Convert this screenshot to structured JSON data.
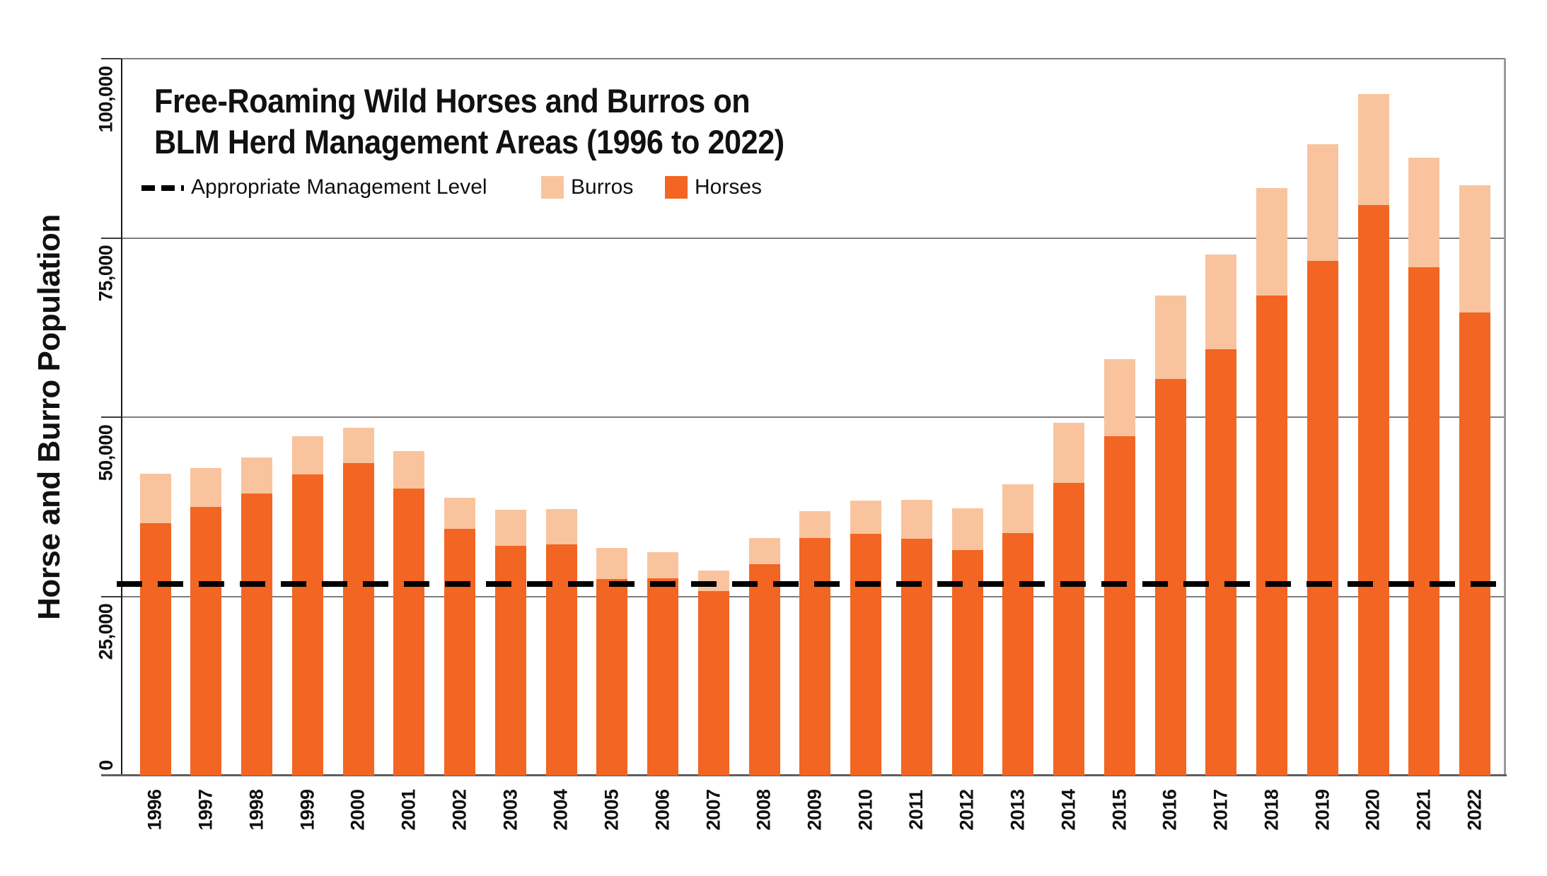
{
  "title": {
    "line1": "Free-Roaming Wild Horses and Burros on",
    "line2": "BLM Herd Management Areas (1996 to 2022)"
  },
  "y_axis_title": "Horse and Burro Population",
  "legend": {
    "aml_label": "Appropriate Management Level",
    "burros_label": "Burros",
    "horses_label": "Horses"
  },
  "colors": {
    "horses": "#f26522",
    "burros": "#f9c49d",
    "gridline": "#7e7e7e",
    "aml_line": "#000000"
  },
  "chart_data": {
    "type": "bar",
    "stacked": true,
    "title": "Free-Roaming Wild Horses and Burros on BLM Herd Management Areas (1996 to 2022)",
    "xlabel": "",
    "ylabel": "Horse and Burro Population",
    "ylim": [
      0,
      100000
    ],
    "y_ticks": [
      0,
      25000,
      50000,
      75000,
      100000
    ],
    "y_tick_labels": [
      "0",
      "25,000",
      "50,000",
      "75,000",
      "100,000"
    ],
    "grid": "horizontal",
    "legend_position": "top-left",
    "categories": [
      1996,
      1997,
      1998,
      1999,
      2000,
      2001,
      2002,
      2003,
      2004,
      2005,
      2006,
      2007,
      2008,
      2009,
      2010,
      2011,
      2012,
      2013,
      2014,
      2015,
      2016,
      2017,
      2018,
      2019,
      2020,
      2021,
      2022
    ],
    "series": [
      {
        "name": "Horses",
        "values": [
          35200,
          37500,
          39400,
          42000,
          43600,
          40000,
          34400,
          32100,
          32300,
          27400,
          27500,
          25700,
          29500,
          33100,
          33700,
          33000,
          31500,
          33800,
          40800,
          47300,
          55300,
          59500,
          67000,
          71800,
          79600,
          70900,
          64600
        ]
      },
      {
        "name": "Burros",
        "values": [
          6900,
          5400,
          5000,
          5300,
          4900,
          5300,
          4400,
          5000,
          4900,
          4400,
          3700,
          2900,
          3600,
          3800,
          4700,
          5500,
          5800,
          6800,
          8400,
          10800,
          11700,
          13200,
          15000,
          16300,
          15500,
          15300,
          17800
        ]
      }
    ],
    "reference_line": {
      "label": "Appropriate Management Level",
      "value": 26700,
      "style": "dashed"
    }
  }
}
